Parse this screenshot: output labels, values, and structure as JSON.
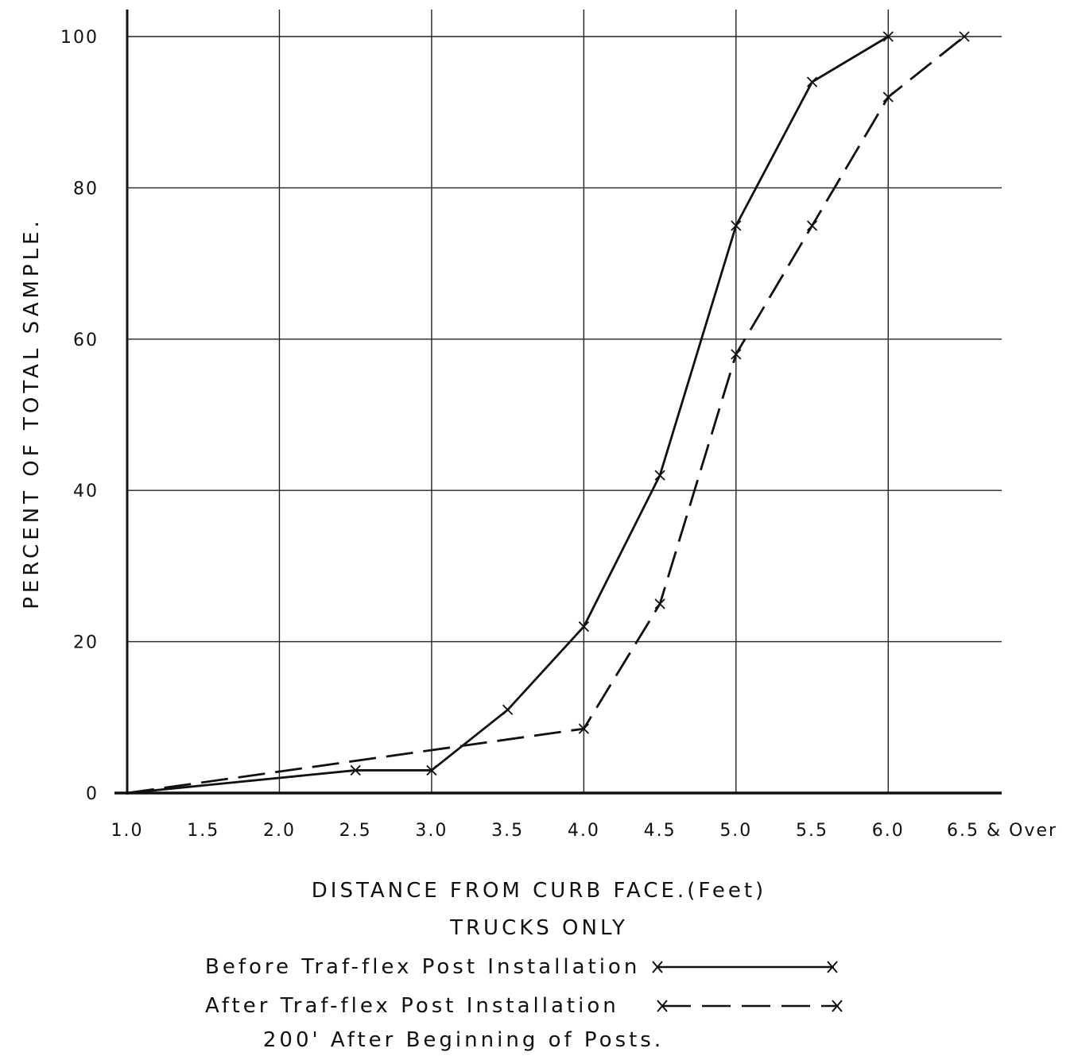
{
  "chart_data": {
    "type": "line",
    "ylabel": "PERCENT OF TOTAL SAMPLE.",
    "xlabel": "DISTANCE FROM CURB FACE.(Feet)",
    "subtitle": "TRUCKS ONLY",
    "note": "200' After Beginning of Posts.",
    "x_ticks": [
      {
        "v": 1.0,
        "label": "1.0"
      },
      {
        "v": 1.5,
        "label": "1.5"
      },
      {
        "v": 2.0,
        "label": "2.0"
      },
      {
        "v": 2.5,
        "label": "2.5"
      },
      {
        "v": 3.0,
        "label": "3.0"
      },
      {
        "v": 3.5,
        "label": "3.5"
      },
      {
        "v": 4.0,
        "label": "4.0"
      },
      {
        "v": 4.5,
        "label": "4.5"
      },
      {
        "v": 5.0,
        "label": "5.0"
      },
      {
        "v": 5.5,
        "label": "5.5"
      },
      {
        "v": 6.0,
        "label": "6.0"
      },
      {
        "v": 6.5,
        "label": "6.5 & Over"
      }
    ],
    "y_ticks": [
      0,
      20,
      40,
      60,
      80,
      100
    ],
    "xlim": [
      1.0,
      6.5
    ],
    "ylim": [
      0,
      100
    ],
    "grid": true,
    "series": [
      {
        "name": "Before Traf-flex Post Installation",
        "style": "solid",
        "color": "#111111",
        "points": [
          [
            1.0,
            0
          ],
          [
            2.5,
            3
          ],
          [
            3.0,
            3
          ],
          [
            3.5,
            11
          ],
          [
            4.0,
            22
          ],
          [
            4.5,
            42
          ],
          [
            5.0,
            75
          ],
          [
            5.5,
            94
          ],
          [
            6.0,
            100
          ]
        ]
      },
      {
        "name": "After Traf-flex Post Installation",
        "style": "dashed",
        "color": "#111111",
        "points": [
          [
            1.0,
            0
          ],
          [
            4.0,
            8.5
          ],
          [
            4.5,
            25
          ],
          [
            5.0,
            58
          ],
          [
            5.5,
            75
          ],
          [
            6.0,
            92
          ],
          [
            6.5,
            100
          ]
        ]
      }
    ]
  }
}
